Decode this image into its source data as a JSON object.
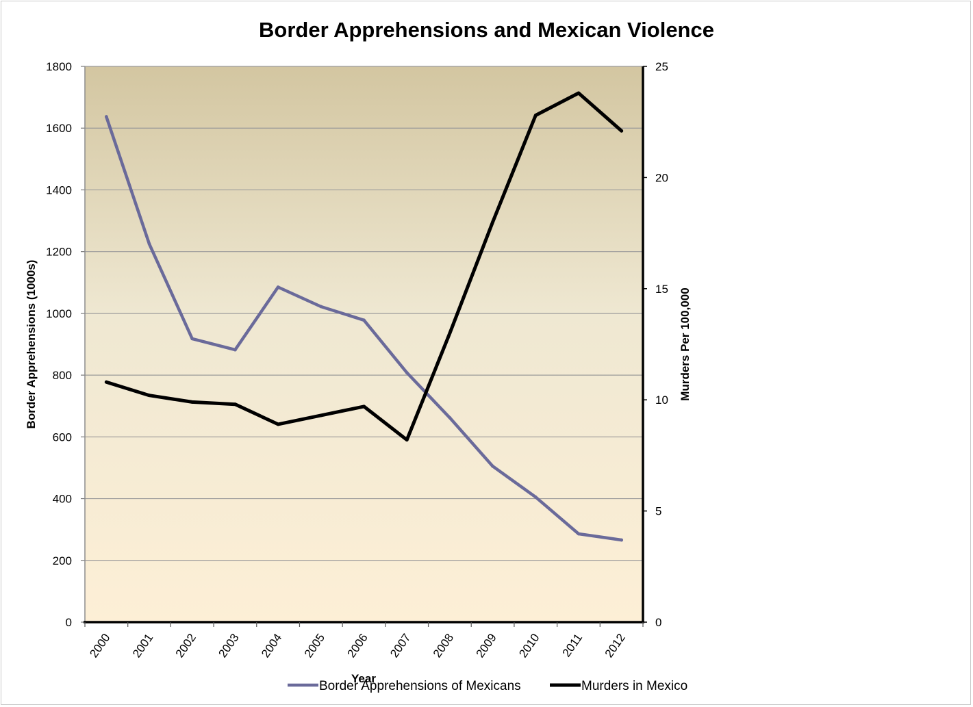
{
  "chart_data": {
    "type": "line",
    "title": "Border Apprehensions and Mexican Violence",
    "xlabel": "Year",
    "ylabel": "Border Apprehensions (1000s)",
    "y2label": "Murders Per 100,000",
    "categories": [
      "2000",
      "2001",
      "2002",
      "2003",
      "2004",
      "2005",
      "2006",
      "2007",
      "2008",
      "2009",
      "2010",
      "2011",
      "2012"
    ],
    "ylim": [
      0,
      1800
    ],
    "y2lim": [
      0,
      25
    ],
    "yticks": [
      0,
      200,
      400,
      600,
      800,
      1000,
      1200,
      1400,
      1600,
      1800
    ],
    "y2ticks": [
      0,
      5,
      10,
      15,
      20,
      25
    ],
    "grid": true,
    "legend_position": "bottom",
    "series": [
      {
        "name": "Border Apprehensions of Mexicans",
        "axis": "left",
        "color": "#6a6a9a",
        "values": [
          1637,
          1225,
          918,
          882,
          1085,
          1022,
          978,
          808,
          662,
          505,
          405,
          286,
          266
        ]
      },
      {
        "name": "Murders in Mexico",
        "axis": "right",
        "color": "#000000",
        "values": [
          10.8,
          10.2,
          9.9,
          9.8,
          8.9,
          9.3,
          9.7,
          8.2,
          13.0,
          18.0,
          22.8,
          23.8,
          22.1
        ]
      }
    ],
    "plot_gradient": {
      "top": "#d3c6a1",
      "middle": "#efe8d2",
      "bottom": "#fdefd6"
    }
  }
}
